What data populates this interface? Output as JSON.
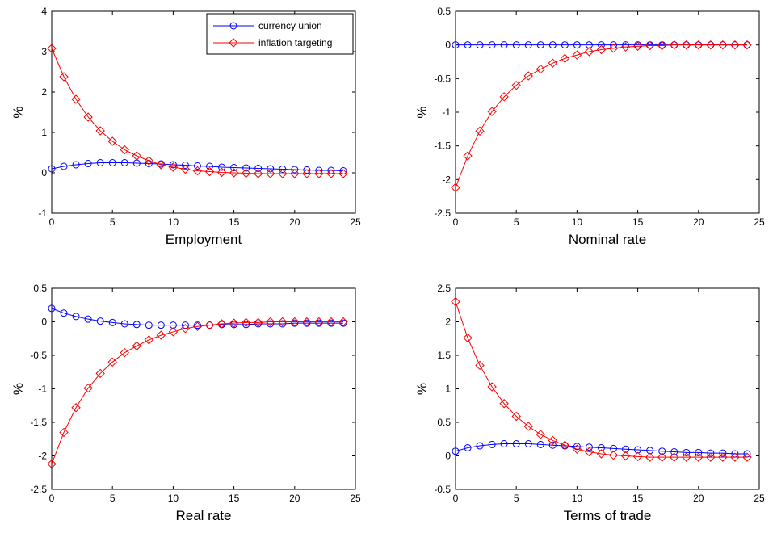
{
  "legend": {
    "series": [
      {
        "name": "currency union",
        "color": "#0000ff",
        "marker": "circle"
      },
      {
        "name": "inflation targeting",
        "color": "#ff0000",
        "marker": "diamond"
      }
    ]
  },
  "chart_data": [
    {
      "type": "line",
      "xlabel": "Employment",
      "ylabel": "%",
      "xlim": [
        0,
        25
      ],
      "ylim": [
        -1,
        4
      ],
      "xticks": [
        "0",
        "5",
        "10",
        "15",
        "20",
        "25"
      ],
      "yticks": [
        "-1",
        "0",
        "1",
        "2",
        "3",
        "4"
      ],
      "legend": "top-right",
      "x": [
        0,
        1,
        2,
        3,
        4,
        5,
        6,
        7,
        8,
        9,
        10,
        11,
        12,
        13,
        14,
        15,
        16,
        17,
        18,
        19,
        20,
        21,
        22,
        23,
        24
      ],
      "series": [
        {
          "name": "currency union",
          "values": [
            0.1,
            0.16,
            0.2,
            0.23,
            0.25,
            0.25,
            0.25,
            0.24,
            0.23,
            0.22,
            0.2,
            0.19,
            0.17,
            0.16,
            0.14,
            0.13,
            0.12,
            0.11,
            0.1,
            0.09,
            0.08,
            0.07,
            0.06,
            0.06,
            0.05
          ]
        },
        {
          "name": "inflation targeting",
          "values": [
            3.08,
            2.38,
            1.82,
            1.38,
            1.04,
            0.78,
            0.57,
            0.42,
            0.3,
            0.2,
            0.14,
            0.09,
            0.05,
            0.03,
            0.01,
            0.0,
            -0.01,
            -0.02,
            -0.02,
            -0.02,
            -0.02,
            -0.02,
            -0.02,
            -0.02,
            -0.02
          ]
        }
      ]
    },
    {
      "type": "line",
      "xlabel": "Nominal rate",
      "ylabel": "%",
      "xlim": [
        0,
        25
      ],
      "ylim": [
        -2.5,
        0.5
      ],
      "xticks": [
        "0",
        "5",
        "10",
        "15",
        "20",
        "25"
      ],
      "yticks": [
        "-2.5",
        "-2",
        "-1.5",
        "-1",
        "-0.5",
        "0",
        "0.5"
      ],
      "x": [
        0,
        1,
        2,
        3,
        4,
        5,
        6,
        7,
        8,
        9,
        10,
        11,
        12,
        13,
        14,
        15,
        16,
        17,
        18,
        19,
        20,
        21,
        22,
        23,
        24
      ],
      "series": [
        {
          "name": "currency union",
          "values": [
            0,
            0,
            0,
            0,
            0,
            0,
            0,
            0,
            0,
            0,
            0,
            0,
            0,
            0,
            0,
            0,
            0,
            0,
            0,
            0,
            0,
            0,
            0,
            0,
            0
          ]
        },
        {
          "name": "inflation targeting",
          "values": [
            -2.12,
            -1.65,
            -1.28,
            -0.99,
            -0.77,
            -0.6,
            -0.46,
            -0.36,
            -0.27,
            -0.2,
            -0.15,
            -0.1,
            -0.07,
            -0.05,
            -0.03,
            -0.02,
            -0.01,
            -0.01,
            0,
            0,
            0,
            0,
            0,
            0,
            0
          ]
        }
      ]
    },
    {
      "type": "line",
      "xlabel": "Real rate",
      "ylabel": "%",
      "xlim": [
        0,
        25
      ],
      "ylim": [
        -2.5,
        0.5
      ],
      "xticks": [
        "0",
        "5",
        "10",
        "15",
        "20",
        "25"
      ],
      "yticks": [
        "-2.5",
        "-2",
        "-1.5",
        "-1",
        "-0.5",
        "0",
        "0.5"
      ],
      "x": [
        0,
        1,
        2,
        3,
        4,
        5,
        6,
        7,
        8,
        9,
        10,
        11,
        12,
        13,
        14,
        15,
        16,
        17,
        18,
        19,
        20,
        21,
        22,
        23,
        24
      ],
      "series": [
        {
          "name": "currency union",
          "values": [
            0.2,
            0.13,
            0.08,
            0.04,
            0.01,
            -0.01,
            -0.03,
            -0.04,
            -0.05,
            -0.05,
            -0.05,
            -0.05,
            -0.05,
            -0.05,
            -0.04,
            -0.04,
            -0.04,
            -0.03,
            -0.03,
            -0.03,
            -0.02,
            -0.02,
            -0.02,
            -0.02,
            -0.02
          ]
        },
        {
          "name": "inflation targeting",
          "values": [
            -2.12,
            -1.65,
            -1.28,
            -0.99,
            -0.77,
            -0.6,
            -0.46,
            -0.36,
            -0.27,
            -0.2,
            -0.15,
            -0.1,
            -0.07,
            -0.05,
            -0.03,
            -0.02,
            -0.01,
            -0.01,
            0,
            0,
            0,
            0,
            0,
            0,
            0
          ]
        }
      ]
    },
    {
      "type": "line",
      "xlabel": "Terms of trade",
      "ylabel": "%",
      "xlim": [
        0,
        25
      ],
      "ylim": [
        -0.5,
        2.5
      ],
      "xticks": [
        "0",
        "5",
        "10",
        "15",
        "20",
        "25"
      ],
      "yticks": [
        "-0.5",
        "0",
        "0.5",
        "1",
        "1.5",
        "2",
        "2.5"
      ],
      "x": [
        0,
        1,
        2,
        3,
        4,
        5,
        6,
        7,
        8,
        9,
        10,
        11,
        12,
        13,
        14,
        15,
        16,
        17,
        18,
        19,
        20,
        21,
        22,
        23,
        24
      ],
      "series": [
        {
          "name": "currency union",
          "values": [
            0.07,
            0.12,
            0.15,
            0.17,
            0.18,
            0.18,
            0.18,
            0.17,
            0.16,
            0.15,
            0.14,
            0.13,
            0.12,
            0.11,
            0.1,
            0.09,
            0.08,
            0.07,
            0.06,
            0.05,
            0.05,
            0.04,
            0.04,
            0.03,
            0.03
          ]
        },
        {
          "name": "inflation targeting",
          "values": [
            2.3,
            1.76,
            1.35,
            1.03,
            0.78,
            0.59,
            0.44,
            0.32,
            0.23,
            0.16,
            0.1,
            0.06,
            0.03,
            0.01,
            0,
            -0.01,
            -0.02,
            -0.02,
            -0.02,
            -0.02,
            -0.02,
            -0.02,
            -0.02,
            -0.02,
            -0.02
          ]
        }
      ]
    }
  ]
}
